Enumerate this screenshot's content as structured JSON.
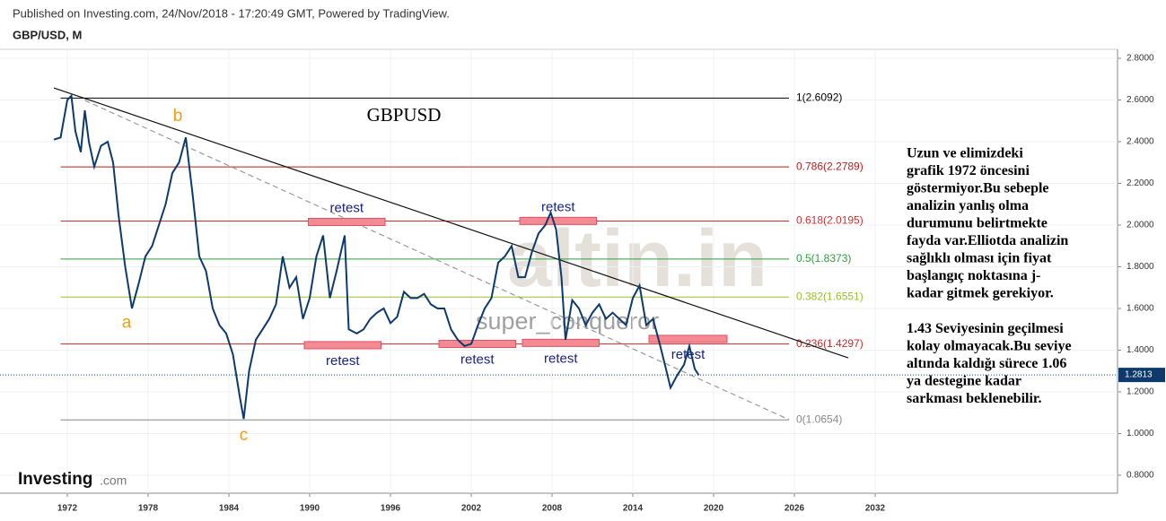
{
  "header": {
    "published": "Published on Investing.com, 24/Nov/2018 - 17:20:49 GMT, Powered by TradingView.",
    "symbol": "GBP/USD, M"
  },
  "chart_data": {
    "type": "line",
    "title": "GBPUSD",
    "xlim": [
      1967,
      2050
    ],
    "ylim": [
      0.714,
      2.843
    ],
    "xticks": [
      1972,
      1978,
      1984,
      1990,
      1996,
      2002,
      2008,
      2014,
      2020,
      2026,
      2032
    ],
    "yticks": [
      {
        "value": 0.8,
        "label": "0.8000"
      },
      {
        "value": 1.0,
        "label": "1.0000"
      },
      {
        "value": 1.2,
        "label": "1.2000"
      },
      {
        "value": 1.4,
        "label": "1.4000"
      },
      {
        "value": 1.6,
        "label": "1.6000"
      },
      {
        "value": 1.8,
        "label": "1.8000"
      },
      {
        "value": 2.0,
        "label": "2.0000"
      },
      {
        "value": 2.2,
        "label": "2.2000"
      },
      {
        "value": 2.4,
        "label": "2.4000"
      },
      {
        "value": 2.6,
        "label": "2.6000"
      },
      {
        "value": 2.8,
        "label": "2.8000"
      }
    ],
    "grid": true,
    "series": [
      {
        "name": "GBP/USD",
        "color": "#0d3a6b",
        "x": [
          1971.0,
          1971.5,
          1972.0,
          1972.3,
          1972.6,
          1973.0,
          1973.3,
          1973.6,
          1974.0,
          1974.5,
          1975.0,
          1975.4,
          1975.8,
          1976.3,
          1976.8,
          1977.3,
          1977.8,
          1978.3,
          1978.8,
          1979.3,
          1979.8,
          1980.3,
          1980.8,
          1981.3,
          1981.8,
          1982.3,
          1982.8,
          1983.3,
          1983.8,
          1984.3,
          1984.8,
          1985.1,
          1985.5,
          1986.0,
          1986.5,
          1987.0,
          1987.5,
          1988.0,
          1988.5,
          1989.0,
          1989.5,
          1990.0,
          1990.5,
          1991.0,
          1991.5,
          1992.0,
          1992.6,
          1992.9,
          1993.5,
          1994.0,
          1994.5,
          1995.0,
          1995.5,
          1996.0,
          1996.5,
          1997.0,
          1997.5,
          1998.0,
          1998.5,
          1999.0,
          1999.5,
          2000.0,
          2000.5,
          2001.0,
          2001.5,
          2002.0,
          2002.5,
          2003.0,
          2003.5,
          2004.0,
          2004.5,
          2005.0,
          2005.5,
          2006.0,
          2006.5,
          2007.0,
          2007.5,
          2007.9,
          2008.3,
          2008.7,
          2009.0,
          2009.5,
          2010.0,
          2010.5,
          2011.0,
          2011.5,
          2012.0,
          2012.5,
          2013.0,
          2013.5,
          2014.0,
          2014.5,
          2015.0,
          2015.5,
          2016.0,
          2016.5,
          2016.8,
          2017.3,
          2017.8,
          2018.2,
          2018.6,
          2018.9
        ],
        "values": [
          2.41,
          2.42,
          2.6,
          2.62,
          2.45,
          2.35,
          2.55,
          2.4,
          2.28,
          2.38,
          2.4,
          2.3,
          2.05,
          1.8,
          1.6,
          1.72,
          1.85,
          1.9,
          2.0,
          2.1,
          2.25,
          2.3,
          2.42,
          2.15,
          1.85,
          1.78,
          1.6,
          1.52,
          1.48,
          1.38,
          1.18,
          1.07,
          1.3,
          1.45,
          1.5,
          1.55,
          1.62,
          1.85,
          1.7,
          1.75,
          1.55,
          1.65,
          1.85,
          1.95,
          1.65,
          1.78,
          1.95,
          1.5,
          1.48,
          1.5,
          1.55,
          1.58,
          1.6,
          1.53,
          1.56,
          1.68,
          1.65,
          1.65,
          1.67,
          1.62,
          1.6,
          1.6,
          1.5,
          1.45,
          1.42,
          1.43,
          1.52,
          1.6,
          1.65,
          1.82,
          1.85,
          1.9,
          1.75,
          1.75,
          1.87,
          1.96,
          2.0,
          2.06,
          1.98,
          1.75,
          1.45,
          1.64,
          1.6,
          1.52,
          1.58,
          1.62,
          1.55,
          1.58,
          1.55,
          1.52,
          1.65,
          1.71,
          1.52,
          1.55,
          1.43,
          1.3,
          1.22,
          1.28,
          1.33,
          1.42,
          1.31,
          1.28
        ]
      }
    ],
    "last_price": 1.2813,
    "fib_levels": [
      {
        "label": "1(2.6092)",
        "value": 2.6092,
        "color": "#000000"
      },
      {
        "label": "0.786(2.2789)",
        "value": 2.2789,
        "color": "#b71c1c"
      },
      {
        "label": "0.618(2.0195)",
        "value": 2.0195,
        "color": "#d32f2f"
      },
      {
        "label": "0.5(1.8373)",
        "value": 1.8373,
        "color": "#2e9e3e"
      },
      {
        "label": "0.382(1.6551)",
        "value": 1.6551,
        "color": "#9bbf2e"
      },
      {
        "label": "0.236(1.4297)",
        "value": 1.4297,
        "color": "#c62828"
      },
      {
        "label": "0(1.0654)",
        "value": 1.0654,
        "color": "#888888"
      }
    ],
    "fib_range": [
      1971.5,
      2025.6
    ],
    "trendline": {
      "x": [
        1971.0,
        2030.0
      ],
      "y": [
        2.658,
        1.363
      ]
    },
    "dashed_line": {
      "x": [
        1973.3,
        2025.6
      ],
      "y": [
        2.598,
        1.067
      ]
    },
    "retests": [
      {
        "label": "retest",
        "x0": 1989.9,
        "x1": 1995.6,
        "y": 2.015,
        "side": "above"
      },
      {
        "label": "retest",
        "x0": 1989.6,
        "x1": 1995.3,
        "y": 1.424,
        "side": "below"
      },
      {
        "label": "retest",
        "x0": 1999.6,
        "x1": 2005.3,
        "y": 1.43,
        "side": "below"
      },
      {
        "label": "retest",
        "x0": 2005.6,
        "x1": 2011.3,
        "y": 2.02,
        "side": "above"
      },
      {
        "label": "retest",
        "x0": 2005.8,
        "x1": 2011.5,
        "y": 1.435,
        "side": "below"
      },
      {
        "label": "retest",
        "x0": 2015.2,
        "x1": 2021.0,
        "y": 1.454,
        "side": "below"
      }
    ],
    "waves": [
      {
        "label": "a",
        "x": 1976.4,
        "y": 1.53
      },
      {
        "label": "b",
        "x": 1980.2,
        "y": 2.52
      },
      {
        "label": "c",
        "x": 1985.1,
        "y": 0.99
      }
    ],
    "comment": [
      [
        "Uzun ve elimizdeki",
        "grafik 1972 öncesini",
        "göstermiyor.Bu sebeple",
        "analizin yanlış olma",
        "durumunu belirtmekte",
        "fayda var.Elliotda analizin",
        "sağlıklı olması için fiyat",
        "başlangıç noktasına j-",
        "kadar gitmek gerekiyor."
      ],
      [
        "1.43 Seviyesinin geçilmesi",
        "kolay olmayacak.Bu seviye",
        "altında kaldığı sürece 1.06",
        "ya destegine kadar",
        "sarkması beklenebilir."
      ]
    ],
    "watermarks": {
      "site": "altin.in",
      "author": "super_conqueror"
    }
  },
  "logo": {
    "brand": "Investing",
    "suffix": ".com"
  }
}
